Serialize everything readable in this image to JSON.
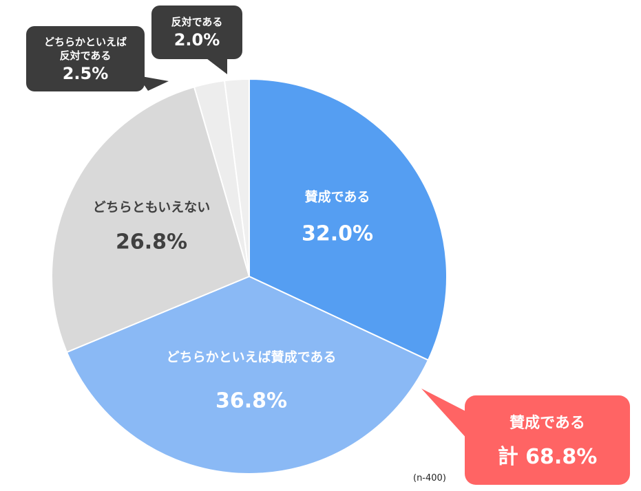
{
  "chart_data": {
    "type": "pie",
    "categories": [
      "賛成である",
      "どちらかといえば賛成である",
      "どちらともいえない",
      "どちらかといえば反対である",
      "反対である"
    ],
    "values": [
      32.0,
      36.8,
      26.8,
      2.5,
      2.0
    ],
    "value_labels": [
      "32.0%",
      "36.8%",
      "26.8%",
      "2.5%",
      "2.0%"
    ],
    "colors": [
      "#559ef2",
      "#8ab9f5",
      "#d9d9d9",
      "#ededed",
      "#efefef"
    ],
    "annotation": {
      "title": "賛成である",
      "text": "計 68.8%"
    },
    "note": "(n-400)"
  }
}
